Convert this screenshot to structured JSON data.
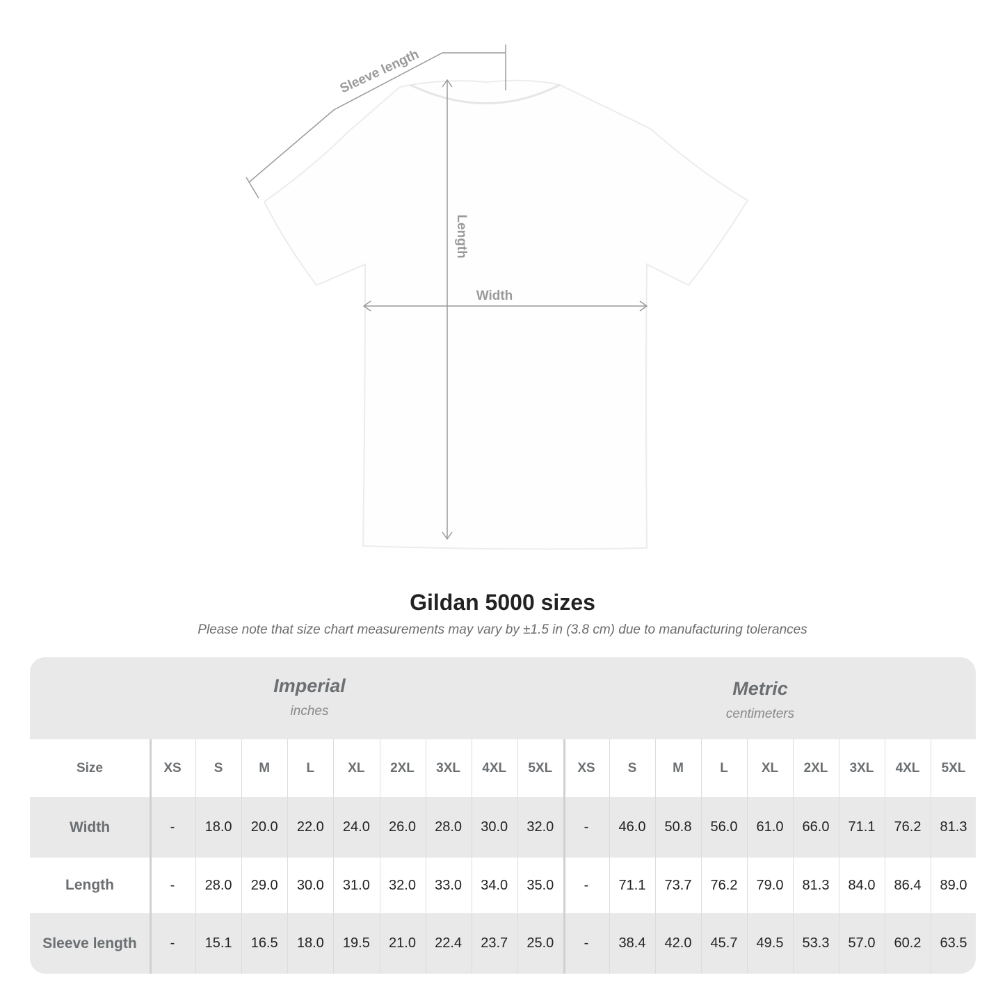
{
  "diagram": {
    "labels": {
      "sleeve": "Sleeve length",
      "length": "Length",
      "width": "Width"
    },
    "line_color": "#9a9a9a"
  },
  "title": "Gildan 5000 sizes",
  "subtitle": "Please note that size chart measurements may vary by ±1.5 in (3.8 cm) due to manufacturing tolerances",
  "table": {
    "imperial": {
      "label": "Imperial",
      "unit": "inches"
    },
    "metric": {
      "label": "Metric",
      "unit": "centimeters"
    },
    "size_label": "Size",
    "sizes": [
      "XS",
      "S",
      "M",
      "L",
      "XL",
      "2XL",
      "3XL",
      "4XL",
      "5XL"
    ],
    "rows": [
      {
        "label": "Width",
        "imperial": [
          "-",
          "18.0",
          "20.0",
          "22.0",
          "24.0",
          "26.0",
          "28.0",
          "30.0",
          "32.0"
        ],
        "metric": [
          "-",
          "46.0",
          "50.8",
          "56.0",
          "61.0",
          "66.0",
          "71.1",
          "76.2",
          "81.3"
        ]
      },
      {
        "label": "Length",
        "imperial": [
          "-",
          "28.0",
          "29.0",
          "30.0",
          "31.0",
          "32.0",
          "33.0",
          "34.0",
          "35.0"
        ],
        "metric": [
          "-",
          "71.1",
          "73.7",
          "76.2",
          "79.0",
          "81.3",
          "84.0",
          "86.4",
          "89.0"
        ]
      },
      {
        "label": "Sleeve length",
        "imperial": [
          "-",
          "15.1",
          "16.5",
          "18.0",
          "19.5",
          "21.0",
          "22.4",
          "23.7",
          "25.0"
        ],
        "metric": [
          "-",
          "38.4",
          "42.0",
          "45.7",
          "49.5",
          "53.3",
          "57.0",
          "60.2",
          "63.5"
        ]
      }
    ],
    "colors": {
      "band": "#e9e9e9",
      "header_text": "#6b6f72"
    }
  }
}
